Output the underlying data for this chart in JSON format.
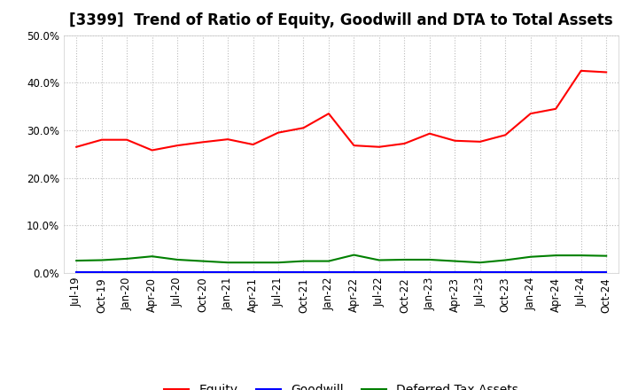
{
  "title": "[3399]  Trend of Ratio of Equity, Goodwill and DTA to Total Assets",
  "x_labels": [
    "Jul-19",
    "Oct-19",
    "Jan-20",
    "Apr-20",
    "Jul-20",
    "Oct-20",
    "Jan-21",
    "Apr-21",
    "Jul-21",
    "Oct-21",
    "Jan-22",
    "Apr-22",
    "Jul-22",
    "Oct-22",
    "Jan-23",
    "Apr-23",
    "Jul-23",
    "Oct-23",
    "Jan-24",
    "Apr-24",
    "Jul-24",
    "Oct-24"
  ],
  "equity": [
    0.265,
    0.28,
    0.28,
    0.258,
    0.268,
    0.275,
    0.281,
    0.27,
    0.295,
    0.305,
    0.335,
    0.268,
    0.265,
    0.272,
    0.293,
    0.278,
    0.276,
    0.29,
    0.335,
    0.345,
    0.425,
    0.422
  ],
  "goodwill": [
    0.001,
    0.001,
    0.001,
    0.001,
    0.001,
    0.001,
    0.001,
    0.001,
    0.001,
    0.001,
    0.001,
    0.001,
    0.001,
    0.001,
    0.001,
    0.001,
    0.001,
    0.001,
    0.001,
    0.001,
    0.001,
    0.001
  ],
  "dta": [
    0.026,
    0.027,
    0.03,
    0.035,
    0.028,
    0.025,
    0.022,
    0.022,
    0.022,
    0.025,
    0.025,
    0.038,
    0.027,
    0.028,
    0.028,
    0.025,
    0.022,
    0.027,
    0.034,
    0.037,
    0.037,
    0.036
  ],
  "equity_color": "#FF0000",
  "goodwill_color": "#0000FF",
  "dta_color": "#008000",
  "ylim": [
    0.0,
    0.5
  ],
  "yticks": [
    0.0,
    0.1,
    0.2,
    0.3,
    0.4,
    0.5
  ],
  "background_color": "#FFFFFF",
  "grid_color": "#BBBBBB",
  "title_fontsize": 12,
  "tick_fontsize": 8.5,
  "legend_fontsize": 10
}
